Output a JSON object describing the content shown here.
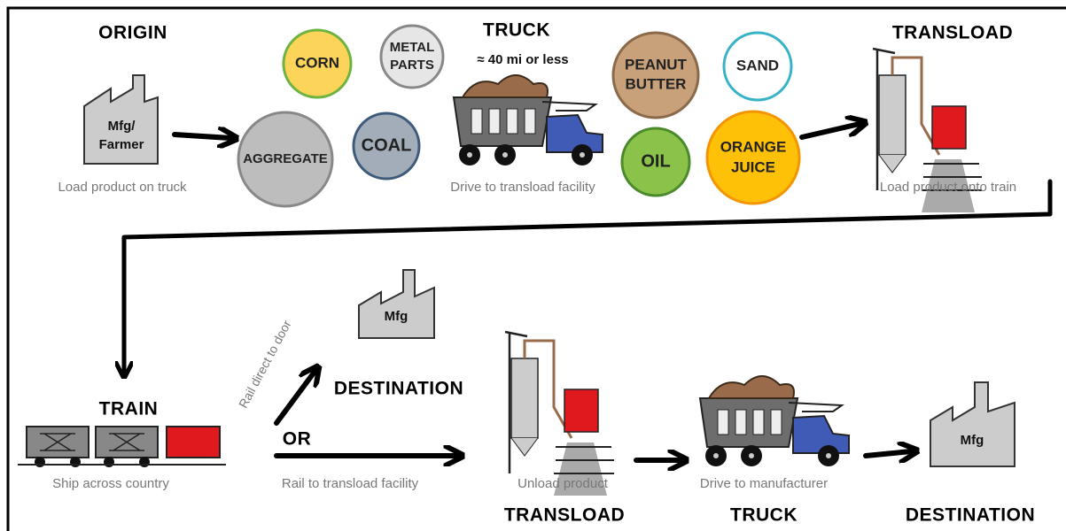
{
  "origin": {
    "heading": "ORIGIN",
    "factory_label": [
      "Mfg/",
      "Farmer"
    ],
    "caption": "Load product on truck"
  },
  "products": [
    {
      "label": [
        "CORN"
      ]
    },
    {
      "label": [
        "METAL",
        "PARTS"
      ]
    },
    {
      "label": [
        "AGGREGATE"
      ]
    },
    {
      "label": [
        "COAL"
      ]
    },
    {
      "label": [
        "PEANUT",
        "BUTTER"
      ]
    },
    {
      "label": [
        "SAND"
      ]
    },
    {
      "label": [
        "OIL"
      ]
    },
    {
      "label": [
        "ORANGE",
        "JUICE"
      ]
    }
  ],
  "truck": {
    "heading": "TRUCK",
    "note": "≈ 40 mi or less",
    "caption": "Drive to transload facility"
  },
  "transload": {
    "heading": "TRANSLOAD",
    "caption": "Load product onto train"
  },
  "train": {
    "heading": "TRAIN",
    "caption": "Ship across country"
  },
  "branch": {
    "direct": "Rail direct to door",
    "or": "OR",
    "transload_route": "Rail to transload facility"
  },
  "destination_direct": {
    "factory_label": "Mfg",
    "heading": "DESTINATION"
  },
  "transload_2": {
    "caption": "Unload product",
    "heading": "TRANSLOAD"
  },
  "truck_2": {
    "caption": "Drive to manufacturer",
    "heading": "TRUCK"
  },
  "destination_final": {
    "factory_label": "Mfg",
    "heading": "DESTINATION"
  }
}
